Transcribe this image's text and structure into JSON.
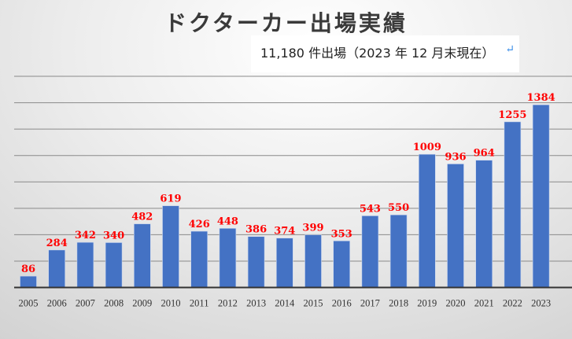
{
  "chart_data": {
    "type": "bar",
    "title": "ドクターカー出場実績",
    "subtitle": "11,180 件出場（2023 年 12 月末現在）",
    "categories": [
      "2005",
      "2006",
      "2007",
      "2008",
      "2009",
      "2010",
      "2011",
      "2012",
      "2013",
      "2014",
      "2015",
      "2016",
      "2017",
      "2018",
      "2019",
      "2020",
      "2021",
      "2022",
      "2023"
    ],
    "values": [
      86,
      284,
      342,
      340,
      482,
      619,
      426,
      448,
      386,
      374,
      399,
      353,
      543,
      550,
      1009,
      936,
      964,
      1255,
      1384
    ],
    "ylim": [
      0,
      1600
    ],
    "grid": true,
    "y_tick_step": 200,
    "y_tick_labels_shown": false,
    "bar_color": "#4472c4",
    "label_color": "#ff0000",
    "xlabel": "",
    "ylabel": ""
  },
  "return_mark": "↵"
}
